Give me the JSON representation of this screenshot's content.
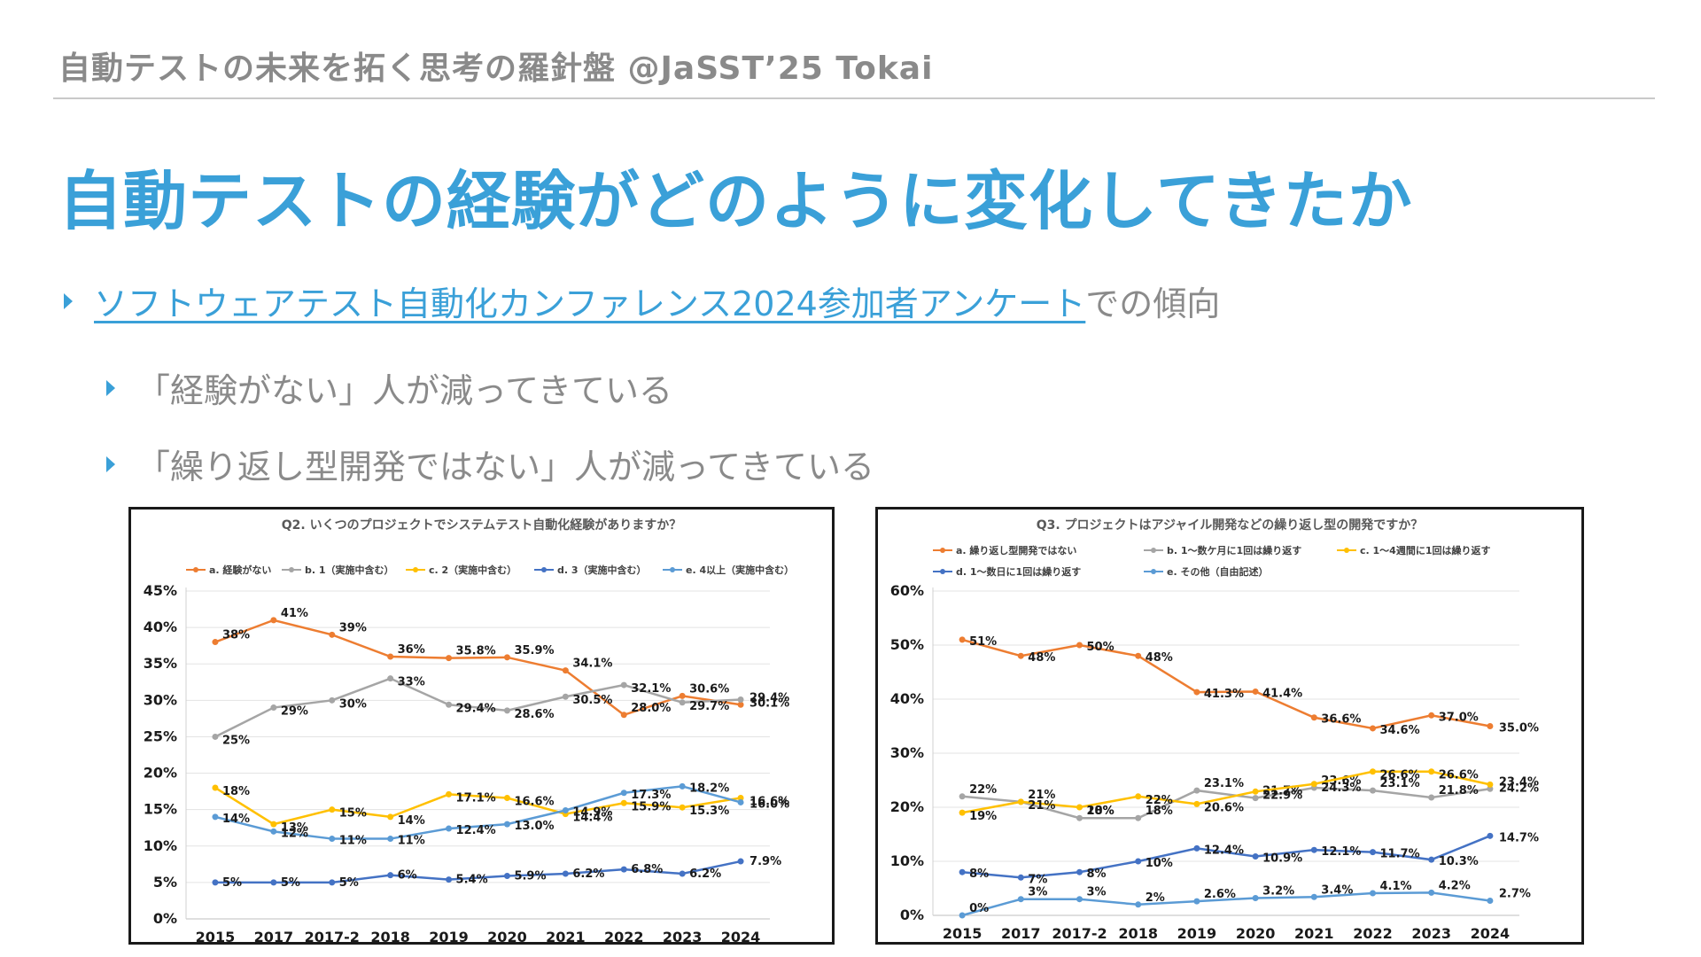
{
  "header": {
    "title": "自動テストの未来を拓く思考の羅針盤 @JaSST’25 Tokai"
  },
  "slide": {
    "title": "自動テストの経験がどのように変化してきたか"
  },
  "bullets": {
    "b1_link": "ソフトウェアテスト自動化カンファレンス2024参加者アンケート",
    "b1_suffix": "での傾向",
    "b2": "「経験がない」人が減ってきている",
    "b3": "「繰り返し型開発ではない」人が減ってきている"
  },
  "colors": {
    "accent": "#3aa0d8",
    "header_text": "#8a8a8a"
  },
  "chart_data": [
    {
      "type": "line",
      "title": "Q2.  いくつのプロジェクトでシステムテスト自動化経験がありますか？",
      "categories": [
        "2015",
        "2017",
        "2017-2",
        "2018",
        "2019",
        "2020",
        "2021",
        "2022",
        "2023",
        "2024"
      ],
      "ylim": [
        0,
        45
      ],
      "yticks": [
        "0%",
        "5%",
        "10%",
        "15%",
        "20%",
        "25%",
        "30%",
        "35%",
        "40%",
        "45%"
      ],
      "legend_position": "top",
      "series": [
        {
          "name": "a. 経験がない",
          "color": "#ed7d31",
          "values": [
            38,
            41,
            39,
            36,
            35.8,
            35.9,
            34.1,
            28.0,
            30.6,
            29.4
          ],
          "labels": [
            "38%",
            "41%",
            "39%",
            "36%",
            "35.8%",
            "35.9%",
            "34.1%",
            "28.0%",
            "30.6%",
            "29.4%"
          ]
        },
        {
          "name": "b. 1（実施中含む）",
          "color": "#a5a5a5",
          "values": [
            25,
            29,
            30,
            33,
            29.4,
            28.6,
            30.5,
            32.1,
            29.7,
            30.1
          ],
          "labels": [
            "25%",
            "29%",
            "30%",
            "33%",
            "29.4%",
            "28.6%",
            "30.5%",
            "32.1%",
            "29.7%",
            "30.1%"
          ]
        },
        {
          "name": "c. 2（実施中含む）",
          "color": "#ffc000",
          "values": [
            18,
            13,
            15,
            14,
            17.1,
            16.6,
            14.4,
            15.9,
            15.3,
            16.6
          ],
          "labels": [
            "18%",
            "13%",
            "15%",
            "14%",
            "17.1%",
            "16.6%",
            "14.4%",
            "15.9%",
            "15.3%",
            "16.6%"
          ]
        },
        {
          "name": "d. 3（実施中含む）",
          "color": "#4472c4",
          "values": [
            5,
            5,
            5,
            6,
            5.4,
            5.9,
            6.2,
            6.8,
            6.2,
            7.9
          ],
          "labels": [
            "5%",
            "5%",
            "5%",
            "6%",
            "5.4%",
            "5.9%",
            "6.2%",
            "6.8%",
            "6.2%",
            "7.9%"
          ]
        },
        {
          "name": "e. 4以上（実施中含む）",
          "color": "#5b9bd5",
          "values": [
            14,
            12,
            11,
            11,
            12.4,
            13.0,
            14.9,
            17.3,
            18.2,
            16.0
          ],
          "labels": [
            "14%",
            "12%",
            "11%",
            "11%",
            "12.4%",
            "13.0%",
            "14.9%",
            "17.3%",
            "18.2%",
            "16.0%"
          ]
        }
      ]
    },
    {
      "type": "line",
      "title": "Q3.  プロジェクトはアジャイル開発などの繰り返し型の開発ですか？",
      "categories": [
        "2015",
        "2017",
        "2017-2",
        "2018",
        "2019",
        "2020",
        "2021",
        "2022",
        "2023",
        "2024"
      ],
      "ylim": [
        0,
        60
      ],
      "yticks": [
        "0%",
        "10%",
        "20%",
        "30%",
        "40%",
        "50%",
        "60%"
      ],
      "legend_position": "top",
      "series": [
        {
          "name": "a. 繰り返し型開発ではない",
          "color": "#ed7d31",
          "values": [
            51,
            48,
            50,
            48,
            41.3,
            41.4,
            36.6,
            34.6,
            37.0,
            35.0
          ],
          "labels": [
            "51%",
            "48%",
            "50%",
            "48%",
            "41.3%",
            "41.4%",
            "36.6%",
            "34.6%",
            "37.0%",
            "35.0%"
          ]
        },
        {
          "name": "b. 1～数ケ月に1回は繰り返す",
          "color": "#a5a5a5",
          "values": [
            22,
            21,
            18,
            18,
            23.1,
            21.7,
            23.6,
            23.1,
            21.8,
            23.4
          ],
          "labels": [
            "22%",
            "21%",
            "18%",
            "18%",
            "23.1%",
            "21.7%",
            "23.6%",
            "23.1%",
            "21.8%",
            "23.4%"
          ]
        },
        {
          "name": "c. 1～4週間に1回は繰り返す",
          "color": "#ffc000",
          "values": [
            19,
            21,
            20,
            22,
            20.6,
            22.9,
            24.3,
            26.6,
            26.6,
            24.2
          ],
          "labels": [
            "19%",
            "21%",
            "20%",
            "22%",
            "20.6%",
            "22.9%",
            "24.3%",
            "26.6%",
            "26.6%",
            "24.2%"
          ]
        },
        {
          "name": "d. 1～数日に1回は繰り返す",
          "color": "#4472c4",
          "values": [
            8,
            7,
            8,
            10,
            12.4,
            10.9,
            12.1,
            11.7,
            10.3,
            14.7
          ],
          "labels": [
            "8%",
            "7%",
            "8%",
            "10%",
            "12.4%",
            "10.9%",
            "12.1%",
            "11.7%",
            "10.3%",
            "14.7%"
          ]
        },
        {
          "name": "e. その他（自由記述）",
          "color": "#5b9bd5",
          "values": [
            0,
            3,
            3,
            2,
            2.6,
            3.2,
            3.4,
            4.1,
            4.2,
            2.7
          ],
          "labels": [
            "0%",
            "3%",
            "3%",
            "2%",
            "2.6%",
            "3.2%",
            "3.4%",
            "4.1%",
            "4.2%",
            "2.7%"
          ]
        }
      ]
    }
  ]
}
